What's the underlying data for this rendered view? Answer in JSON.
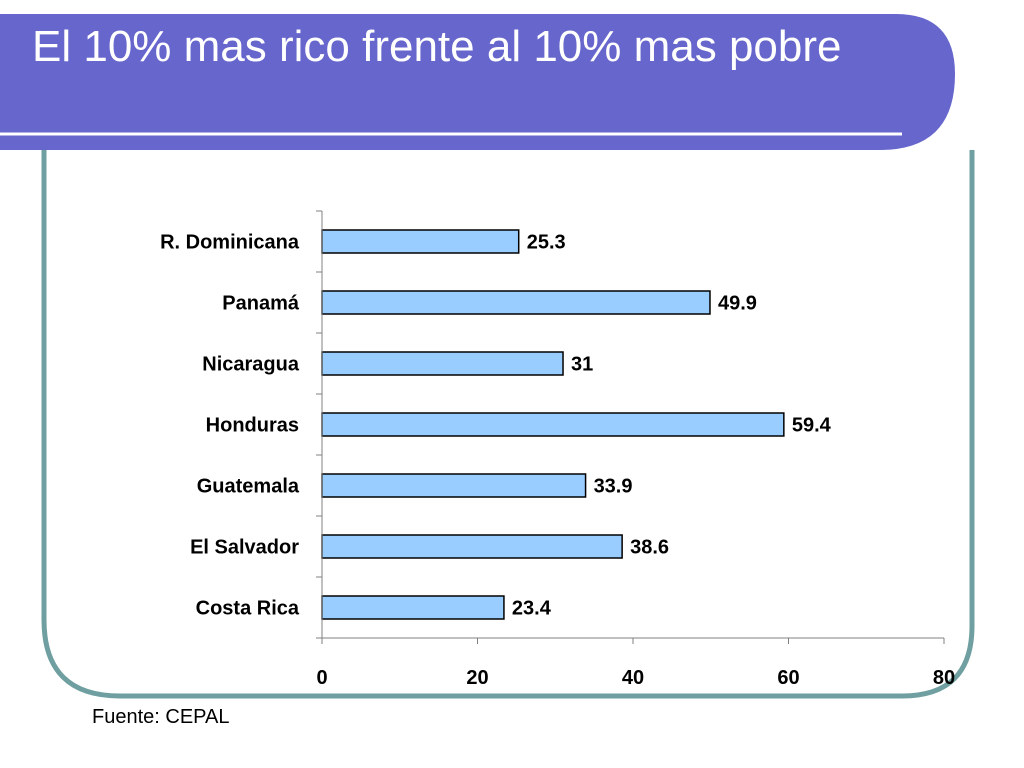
{
  "slide": {
    "title": "El 10% mas rico frente al 10% mas pobre",
    "source_note": "Fuente: CEPAL"
  },
  "colors": {
    "title_band": "#6666cc",
    "frame_border": "#6f9fa0",
    "bar_fill": "#99ccff",
    "bar_stroke": "#000000",
    "axis": "#808080"
  },
  "chart_data": {
    "type": "bar",
    "orientation": "horizontal",
    "categories": [
      "R. Dominicana",
      "Panamá",
      "Nicaragua",
      "Honduras",
      "Guatemala",
      "El Salvador",
      "Costa Rica"
    ],
    "values": [
      25.3,
      49.9,
      31,
      59.4,
      33.9,
      38.6,
      23.4
    ],
    "value_labels": [
      "25.3",
      "49.9",
      "31",
      "59.4",
      "33.9",
      "38.6",
      "23.4"
    ],
    "x_ticks": [
      0,
      20,
      40,
      60,
      80
    ],
    "xlim": [
      0,
      80
    ],
    "title": "",
    "xlabel": "",
    "ylabel": "",
    "grid": false,
    "legend": "none"
  }
}
